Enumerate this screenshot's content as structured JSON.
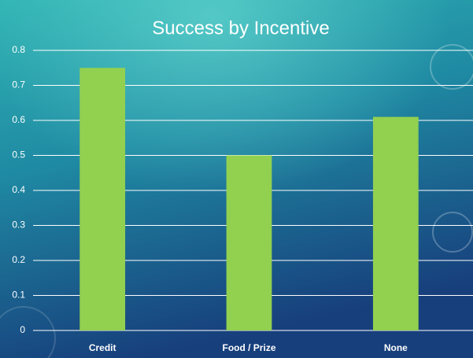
{
  "chart_data": {
    "type": "bar",
    "title": "Success by Incentive",
    "categories": [
      "Credit",
      "Food / Prize",
      "None"
    ],
    "values": [
      0.75,
      0.5,
      0.61
    ],
    "color": "#92d050",
    "ylim": [
      0,
      0.8
    ],
    "yticks": [
      0,
      0.1,
      0.2,
      0.3,
      0.4,
      0.5,
      0.6,
      0.7,
      0.8
    ],
    "grid": true
  }
}
